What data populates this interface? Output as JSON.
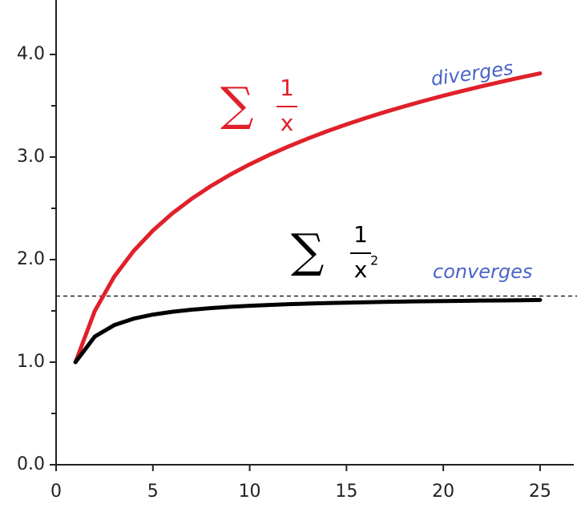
{
  "chart_data": {
    "type": "line",
    "x": [
      1,
      2,
      3,
      4,
      5,
      6,
      7,
      8,
      9,
      10,
      11,
      12,
      13,
      14,
      15,
      16,
      17,
      18,
      19,
      20,
      21,
      22,
      23,
      24,
      25
    ],
    "series": [
      {
        "color": "#e0202a",
        "label": {
          "sigma": "∑",
          "numerator": "1",
          "denominator": "x"
        },
        "values": [
          1,
          1.5,
          1.833,
          2.083,
          2.283,
          2.45,
          2.593,
          2.718,
          2.829,
          2.929,
          3.02,
          3.103,
          3.18,
          3.252,
          3.318,
          3.381,
          3.44,
          3.495,
          3.548,
          3.598,
          3.645,
          3.691,
          3.734,
          3.776,
          3.816
        ]
      },
      {
        "color": "#000000",
        "label": {
          "sigma": "∑",
          "numerator": "1",
          "denominator": "x",
          "exponent": "2"
        },
        "values": [
          1,
          1.25,
          1.361,
          1.424,
          1.464,
          1.491,
          1.512,
          1.527,
          1.54,
          1.55,
          1.558,
          1.565,
          1.571,
          1.576,
          1.58,
          1.584,
          1.588,
          1.591,
          1.594,
          1.596,
          1.598,
          1.601,
          1.602,
          1.604,
          1.606
        ]
      }
    ],
    "annotations": [
      {
        "text": "diverges",
        "color": "#4a63c8"
      },
      {
        "text": "converges",
        "color": "#4a63c8"
      }
    ],
    "hline": 1.645,
    "xlim": [
      0,
      26.7
    ],
    "ylim": [
      0,
      4.5
    ],
    "xticks": [
      0,
      5,
      10,
      15,
      20,
      25
    ],
    "yticks": [
      {
        "value": 0,
        "label": "0.0"
      },
      {
        "value": 1,
        "label": "1.0"
      },
      {
        "value": 2,
        "label": "2.0"
      },
      {
        "value": 3,
        "label": "3.0"
      },
      {
        "value": 4,
        "label": "4.0"
      }
    ],
    "yminor_ticks": [
      0.5,
      1.5,
      2.5,
      3.5
    ]
  }
}
